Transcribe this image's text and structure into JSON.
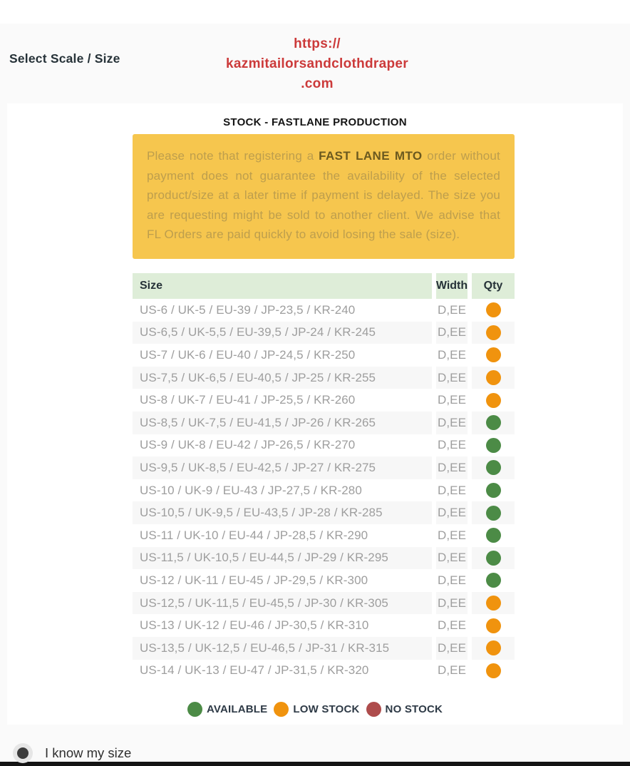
{
  "page": {
    "heading": "Select Scale / Size",
    "site_url": "https://\nkazmitailorsandclothdraper\n.com"
  },
  "stock": {
    "title": "STOCK - FASTLANE PRODUCTION",
    "notice": {
      "pre": "Please note that registering a ",
      "bold": "FAST LANE MTO",
      "post": " order without payment does not guarantee the availability of the selected product/size at a later time if payment is delayed. The size you are requesting might be sold to another client. We advise that FL Orders are paid quickly to avoid losing the sale (size)."
    },
    "table": {
      "headers": [
        "Size",
        "Width",
        "Qty"
      ],
      "rows": [
        {
          "size": "US-6 / UK-5 / EU-39 / JP-23,5 / KR-240",
          "width": "D,EE",
          "status": "low"
        },
        {
          "size": "US-6,5 / UK-5,5 / EU-39,5 / JP-24 / KR-245",
          "width": "D,EE",
          "status": "low"
        },
        {
          "size": "US-7 / UK-6 / EU-40 / JP-24,5 / KR-250",
          "width": "D,EE",
          "status": "low"
        },
        {
          "size": "US-7,5 / UK-6,5 / EU-40,5 / JP-25 / KR-255",
          "width": "D,EE",
          "status": "low"
        },
        {
          "size": "US-8 / UK-7 / EU-41 / JP-25,5 / KR-260",
          "width": "D,EE",
          "status": "low"
        },
        {
          "size": "US-8,5 / UK-7,5 / EU-41,5 / JP-26 / KR-265",
          "width": "D,EE",
          "status": "available"
        },
        {
          "size": "US-9 / UK-8 / EU-42 / JP-26,5 / KR-270",
          "width": "D,EE",
          "status": "available"
        },
        {
          "size": "US-9,5 / UK-8,5 / EU-42,5 / JP-27 / KR-275",
          "width": "D,EE",
          "status": "available"
        },
        {
          "size": "US-10 / UK-9 / EU-43 / JP-27,5 / KR-280",
          "width": "D,EE",
          "status": "available"
        },
        {
          "size": "US-10,5 / UK-9,5 / EU-43,5 / JP-28 / KR-285",
          "width": "D,EE",
          "status": "available"
        },
        {
          "size": "US-11 / UK-10 / EU-44 / JP-28,5 / KR-290",
          "width": "D,EE",
          "status": "available"
        },
        {
          "size": "US-11,5 / UK-10,5 / EU-44,5 / JP-29 / KR-295",
          "width": "D,EE",
          "status": "available"
        },
        {
          "size": "US-12 / UK-11 / EU-45 / JP-29,5 / KR-300",
          "width": "D,EE",
          "status": "available"
        },
        {
          "size": "US-12,5 / UK-11,5 / EU-45,5 / JP-30 / KR-305",
          "width": "D,EE",
          "status": "low"
        },
        {
          "size": "US-13 / UK-12 / EU-46 / JP-30,5 / KR-310",
          "width": "D,EE",
          "status": "low"
        },
        {
          "size": "US-13,5 / UK-12,5 / EU-46,5 / JP-31 / KR-315",
          "width": "D,EE",
          "status": "low"
        },
        {
          "size": "US-14 / UK-13 / EU-47 / JP-31,5 / KR-320",
          "width": "D,EE",
          "status": "low"
        }
      ]
    },
    "legend": [
      {
        "label": "AVAILABLE",
        "status": "available"
      },
      {
        "label": "LOW STOCK",
        "status": "low"
      },
      {
        "label": "NO STOCK",
        "status": "none"
      }
    ]
  },
  "footer": {
    "radio_label": "I know my size"
  },
  "colors": {
    "status": {
      "available": "#4c8b46",
      "low": "#f0930e",
      "none": "#ae4c4c"
    },
    "notice_bg": "#f6c64e",
    "url_red": "#cc3a3a",
    "header_green": "#deedd8"
  }
}
